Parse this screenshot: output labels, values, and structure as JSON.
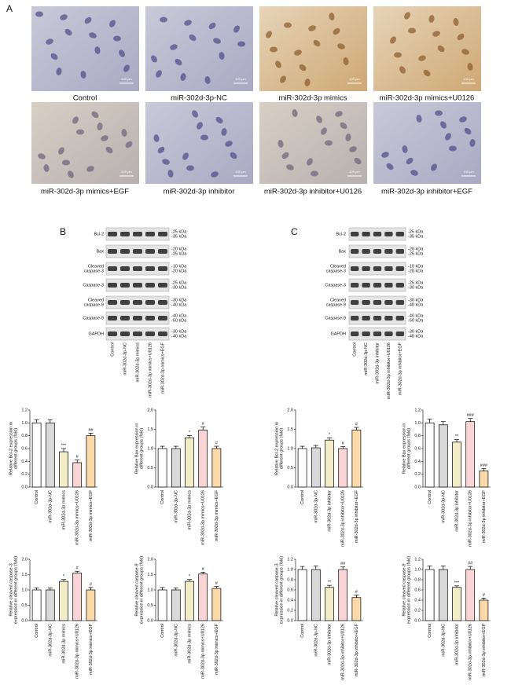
{
  "panels": {
    "a": "A",
    "b": "B",
    "c": "C"
  },
  "images": [
    {
      "caption": "Control",
      "tone": "blue"
    },
    {
      "caption": "miR-302d-3p-NC",
      "tone": "blue"
    },
    {
      "caption": "miR-302d-3p mimics",
      "tone": "brown"
    },
    {
      "caption": "miR-302d-3p mimics+U0126",
      "tone": "brown"
    },
    {
      "caption": "miR-302d-3p mimics+EGF",
      "tone": "mixed"
    },
    {
      "caption": "miR-302d-3p inhibitor",
      "tone": "blue"
    },
    {
      "caption": "miR-302d-3p inhibitor+U0126",
      "tone": "mixed"
    },
    {
      "caption": "miR-302d-3p inhibitor+EGF",
      "tone": "blue"
    }
  ],
  "scale_label": "100 μm",
  "blots": [
    {
      "rows": [
        {
          "label": [
            "Bcl-2"
          ],
          "kda": [
            "-25 kDa",
            "-35 kDa"
          ]
        },
        {
          "label": [
            "Bax"
          ],
          "kda": [
            "-20 kDa",
            "-25 kDa"
          ]
        },
        {
          "label": [
            "Cleaved",
            "caspase-3"
          ],
          "kda": [
            "-10 kDa",
            "-20 kDa"
          ]
        },
        {
          "label": [
            "Caspase-3"
          ],
          "kda": [
            "-25 kDa",
            "-30 kDa"
          ]
        },
        {
          "label": [
            "Cleaved",
            "caspase-9"
          ],
          "kda": [
            "-30 kDa",
            "-40 kDa"
          ]
        },
        {
          "label": [
            "Caspase-9"
          ],
          "kda": [
            "-40 kDa",
            "-50 kDa"
          ]
        },
        {
          "label": [
            "GAPDH"
          ],
          "kda": [
            "-30 kDa",
            "-40 kDa"
          ]
        }
      ],
      "lanes": [
        "Control",
        "miR-302d-3p-NC",
        "miR-302d-3p mimics",
        "miR-302d-3p mimics+U0126",
        "miR-302d-3p mimics+EGF"
      ]
    },
    {
      "rows": [
        {
          "label": [
            "Bcl-2"
          ],
          "kda": [
            "-25 kDa",
            "-35 kDa"
          ]
        },
        {
          "label": [
            "Bax"
          ],
          "kda": [
            "-20 kDa",
            "-25 kDa"
          ]
        },
        {
          "label": [
            "Cleaved",
            "caspase-3"
          ],
          "kda": [
            "-10 kDa",
            "-20 kDa"
          ]
        },
        {
          "label": [
            "Caspase-3"
          ],
          "kda": [
            "-25 kDa",
            "-30 kDa"
          ]
        },
        {
          "label": [
            "Cleaved",
            "caspase-9"
          ],
          "kda": [
            "-30 kDa",
            "-40 kDa"
          ]
        },
        {
          "label": [
            "Caspase-9"
          ],
          "kda": [
            "-40 kDa",
            "-50 kDa"
          ]
        },
        {
          "label": [
            "GAPDH"
          ],
          "kda": [
            "-30 kDa",
            "-40 kDa"
          ]
        }
      ],
      "lanes": [
        "Control",
        "miR-302d-3p-NC",
        "miR-302d-3p inhibitor",
        "miR-302d-3p inhibitor+U0126",
        "miR-302d-3p inhibitor+EGF"
      ]
    }
  ],
  "chart_data": [
    {
      "type": "bar",
      "ylabel": [
        "Relative Bcl-2 expression in",
        "different groups (fold)"
      ],
      "categories": [
        "Control",
        "miR-302d-3p-NC",
        "miR-302d-3p mimics",
        "miR-302d-3p mimics+U0126",
        "miR-302d-3p mimics+EGF"
      ],
      "values": [
        1.0,
        1.0,
        0.55,
        0.38,
        0.8
      ],
      "errors": [
        0.05,
        0.05,
        0.05,
        0.04,
        0.04
      ],
      "annotations": [
        null,
        null,
        "***",
        "#",
        "##"
      ],
      "colors": [
        "#ffffff",
        "#d9d9d9",
        "#f3ecc8",
        "#f9d5d5",
        "#fbd9a8"
      ],
      "ylim": [
        0,
        1.2
      ],
      "yticks": [
        {
          "value": 0,
          "label": "0.0"
        },
        0.2,
        0.4,
        0.6,
        0.8,
        {
          "value": 1,
          "label": "1.0"
        },
        1.2
      ]
    },
    {
      "type": "bar",
      "ylabel": [
        "Relative Bax expression in",
        "different groups (fold)"
      ],
      "categories": [
        "Control",
        "miR-302d-3p-NC",
        "miR-302d-3p mimics",
        "miR-302d-3p mimics+U0126",
        "miR-302d-3p mimics+EGF"
      ],
      "values": [
        1.0,
        1.0,
        1.28,
        1.48,
        1.0
      ],
      "errors": [
        0.06,
        0.06,
        0.06,
        0.08,
        0.06
      ],
      "annotations": [
        null,
        null,
        "*",
        "#",
        "#"
      ],
      "colors": [
        "#ffffff",
        "#d9d9d9",
        "#f3ecc8",
        "#f9d5d5",
        "#fbd9a8"
      ],
      "ylim": [
        0,
        2
      ],
      "yticks": [
        {
          "value": 0,
          "label": "0.0"
        },
        0.5,
        {
          "value": 1,
          "label": "1.0"
        },
        1.5,
        {
          "value": 2,
          "label": "2.0"
        }
      ]
    },
    {
      "type": "bar",
      "ylabel": [
        "Relative Bcl-2 expression in",
        "different groups (fold)"
      ],
      "categories": [
        "Control",
        "miR-302d-3p-NC",
        "miR-302d-3p inhibitor",
        "miR-302d-3p inhibitor+U0126",
        "miR-302d-3p inhibitor+EGF"
      ],
      "values": [
        1.0,
        1.02,
        1.22,
        1.0,
        1.48
      ],
      "errors": [
        0.06,
        0.06,
        0.06,
        0.05,
        0.07
      ],
      "annotations": [
        null,
        null,
        "*",
        "#",
        "#"
      ],
      "colors": [
        "#ffffff",
        "#d9d9d9",
        "#f3ecc8",
        "#f9d5d5",
        "#fbd9a8"
      ],
      "ylim": [
        0,
        2
      ],
      "yticks": [
        {
          "value": 0,
          "label": "0.0"
        },
        0.5,
        {
          "value": 1,
          "label": "1.0"
        },
        1.5,
        {
          "value": 2,
          "label": "2.0"
        }
      ]
    },
    {
      "type": "bar",
      "ylabel": [
        "Relative Bax expression in",
        "different groups (fold)"
      ],
      "categories": [
        "Control",
        "miR-302d-3p-NC",
        "miR-302d-3p inhibitor",
        "miR-302d-3p inhibitor+U0126",
        "miR-302d-3p inhibitor+EGF"
      ],
      "values": [
        1.0,
        0.97,
        0.7,
        1.02,
        0.25
      ],
      "errors": [
        0.06,
        0.05,
        0.04,
        0.05,
        0.04
      ],
      "annotations": [
        null,
        null,
        "**",
        "###",
        "###"
      ],
      "colors": [
        "#ffffff",
        "#d9d9d9",
        "#f3ecc8",
        "#f9d5d5",
        "#fbd9a8"
      ],
      "ylim": [
        0,
        1.2
      ],
      "yticks": [
        {
          "value": 0,
          "label": "0.0"
        },
        0.2,
        0.4,
        0.6,
        0.8,
        {
          "value": 1,
          "label": "1.0"
        },
        1.2
      ]
    },
    {
      "type": "bar",
      "ylabel": [
        "Relative cleaved caspase-3",
        "expression in different groups (fold)"
      ],
      "categories": [
        "Control",
        "miR-302d-3p-NC",
        "miR-302d-3p mimics",
        "miR-302d-3p mimics+U0126",
        "miR-302d-3p mimics+EGF"
      ],
      "values": [
        1.0,
        1.0,
        1.28,
        1.55,
        1.0
      ],
      "errors": [
        0.07,
        0.06,
        0.06,
        0.06,
        0.08
      ],
      "annotations": [
        null,
        null,
        "*",
        "#",
        "#"
      ],
      "colors": [
        "#ffffff",
        "#d9d9d9",
        "#f3ecc8",
        "#f9d5d5",
        "#fbd9a8"
      ],
      "ylim": [
        0,
        2
      ],
      "yticks": [
        {
          "value": 0,
          "label": "0.0"
        },
        0.5,
        {
          "value": 1,
          "label": "1.0"
        },
        1.5,
        {
          "value": 2,
          "label": "2.0"
        }
      ]
    },
    {
      "type": "bar",
      "ylabel": [
        "Relative cleaved caspase-9",
        "expression in different groups (fold)"
      ],
      "categories": [
        "Control",
        "miR-302d-3p-NC",
        "miR-302d-3p mimics",
        "miR-302d-3p mimics+U0126",
        "miR-302d-3p mimics+EGF"
      ],
      "values": [
        1.0,
        1.0,
        1.28,
        1.52,
        1.05
      ],
      "errors": [
        0.08,
        0.07,
        0.06,
        0.06,
        0.06
      ],
      "annotations": [
        null,
        null,
        "*",
        "#",
        "#"
      ],
      "colors": [
        "#ffffff",
        "#d9d9d9",
        "#f3ecc8",
        "#f9d5d5",
        "#fbd9a8"
      ],
      "ylim": [
        0,
        2
      ],
      "yticks": [
        {
          "value": 0,
          "label": "0.0"
        },
        0.5,
        {
          "value": 1,
          "label": "1.0"
        },
        1.5,
        {
          "value": 2,
          "label": "2.0"
        }
      ]
    },
    {
      "type": "bar",
      "ylabel": [
        "Relative cleaved caspase-3",
        "expression in different groups (fold)"
      ],
      "categories": [
        "Control",
        "miR-302d-3p-NC",
        "miR-302d-3p inhibitor",
        "miR-302d-3p inhibitor+U0126",
        "miR-302d-3p inhibitor+EGF"
      ],
      "values": [
        1.0,
        1.0,
        0.65,
        1.0,
        0.45
      ],
      "errors": [
        0.06,
        0.07,
        0.04,
        0.05,
        0.05
      ],
      "annotations": [
        null,
        null,
        "**",
        "##",
        "#"
      ],
      "colors": [
        "#ffffff",
        "#d9d9d9",
        "#f3ecc8",
        "#f9d5d5",
        "#fbd9a8"
      ],
      "ylim": [
        0,
        1.2
      ],
      "yticks": [
        {
          "value": 0,
          "label": "0.0"
        },
        0.2,
        0.4,
        0.6,
        0.8,
        {
          "value": 1,
          "label": "1.0"
        },
        1.2
      ]
    },
    {
      "type": "bar",
      "ylabel": [
        "Relative cleaved caspase-9",
        "expression in different groups (fold)"
      ],
      "categories": [
        "Control",
        "miR-302d-3p-NC",
        "miR-302d-3p inhibitor",
        "miR-302d-3p inhibitor+U0126",
        "miR-302d-3p inhibitor+EGF"
      ],
      "values": [
        1.0,
        1.0,
        0.65,
        1.0,
        0.4
      ],
      "errors": [
        0.07,
        0.07,
        0.03,
        0.06,
        0.04
      ],
      "annotations": [
        null,
        null,
        "***",
        "##",
        "#"
      ],
      "colors": [
        "#ffffff",
        "#d9d9d9",
        "#f3ecc8",
        "#f9d5d5",
        "#fbd9a8"
      ],
      "ylim": [
        0,
        1.2
      ],
      "yticks": [
        {
          "value": 0,
          "label": "0.0"
        },
        0.2,
        0.4,
        0.6,
        0.8,
        {
          "value": 1,
          "label": "1.0"
        },
        1.2
      ]
    }
  ]
}
